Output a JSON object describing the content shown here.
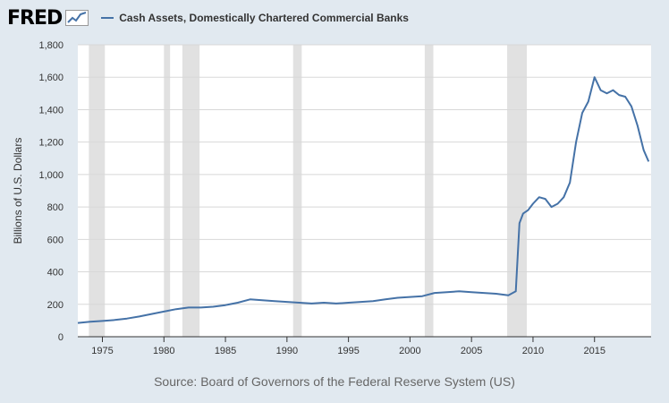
{
  "header": {
    "logo_text": "FRED",
    "series_label": "Cash Assets, Domestically Chartered Commercial Banks"
  },
  "source": "Source: Board of Governors of the Federal Reserve System (US)",
  "colors": {
    "series": "#4572a7",
    "recession": "#e1e1e1",
    "background": "#e1e9f0",
    "plot": "#ffffff"
  },
  "chart_data": {
    "type": "line",
    "title": "",
    "ylabel": "Billions of U.S. Dollars",
    "xlabel": "",
    "xlim": [
      1973.0,
      2019.6
    ],
    "ylim": [
      0,
      1800
    ],
    "y_ticks": [
      "0",
      "200",
      "400",
      "600",
      "800",
      "1,000",
      "1,200",
      "1,400",
      "1,600",
      "1,800"
    ],
    "x_ticks": [
      "1975",
      "1980",
      "1985",
      "1990",
      "1995",
      "2000",
      "2005",
      "2010",
      "2015"
    ],
    "grid": true,
    "legend": "top",
    "recessions": [
      [
        1973.9,
        1975.2
      ],
      [
        1980.0,
        1980.5
      ],
      [
        1981.5,
        1982.9
      ],
      [
        1990.5,
        1991.2
      ],
      [
        2001.2,
        2001.9
      ],
      [
        2007.9,
        2009.5
      ]
    ],
    "series": [
      {
        "name": "Cash Assets, Domestically Chartered Commercial Banks",
        "x": [
          1973.0,
          1974.0,
          1975.0,
          1976.0,
          1977.0,
          1978.0,
          1979.0,
          1980.0,
          1981.0,
          1982.0,
          1983.0,
          1984.0,
          1985.0,
          1986.0,
          1987.0,
          1988.0,
          1989.0,
          1990.0,
          1991.0,
          1992.0,
          1993.0,
          1994.0,
          1995.0,
          1996.0,
          1997.0,
          1998.0,
          1999.0,
          2000.0,
          2001.0,
          2002.0,
          2003.0,
          2004.0,
          2005.0,
          2006.0,
          2007.0,
          2008.0,
          2008.6,
          2008.9,
          2009.2,
          2009.6,
          2010.0,
          2010.5,
          2011.0,
          2011.5,
          2012.0,
          2012.5,
          2013.0,
          2013.5,
          2014.0,
          2014.5,
          2015.0,
          2015.5,
          2016.0,
          2016.5,
          2017.0,
          2017.5,
          2018.0,
          2018.5,
          2019.0,
          2019.4
        ],
        "values": [
          85,
          92,
          97,
          103,
          112,
          125,
          140,
          155,
          170,
          180,
          180,
          185,
          195,
          210,
          230,
          225,
          220,
          215,
          210,
          205,
          210,
          205,
          210,
          215,
          220,
          230,
          240,
          245,
          250,
          270,
          275,
          280,
          275,
          270,
          265,
          255,
          280,
          700,
          760,
          780,
          820,
          860,
          850,
          800,
          820,
          860,
          950,
          1200,
          1380,
          1450,
          1600,
          1520,
          1500,
          1520,
          1490,
          1480,
          1420,
          1300,
          1150,
          1080
        ]
      }
    ]
  }
}
